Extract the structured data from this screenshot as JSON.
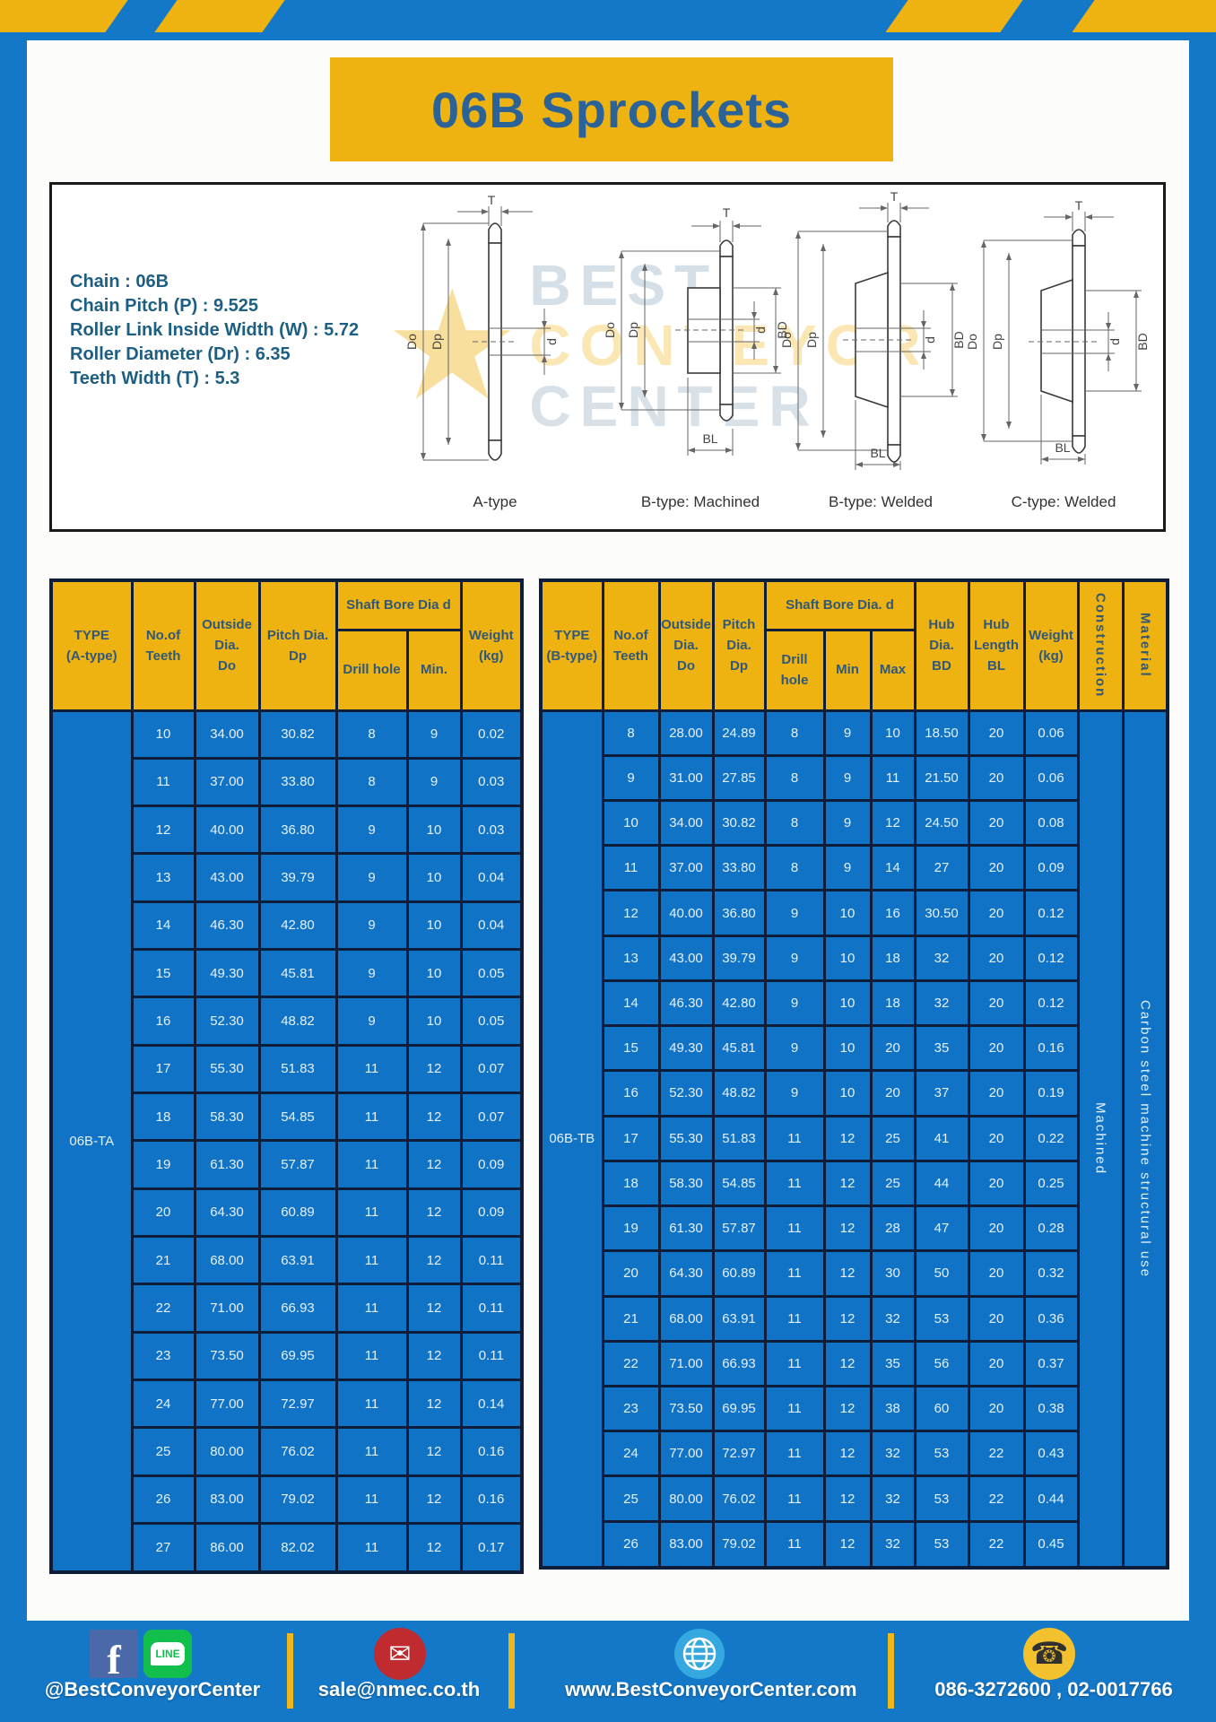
{
  "page": {
    "title": "06B Sprockets"
  },
  "specs": {
    "lines": [
      "Chain  : 06B",
      "Chain Pitch (P)  :  9.525",
      "Roller Link Inside Width (W)  :  5.72",
      "Roller Diameter (Dr)  : 6.35",
      "Teeth Width (T)  :  5.3"
    ]
  },
  "watermark": {
    "lines": [
      "BEST",
      "CONVEYOR",
      "CENTER"
    ],
    "star": "★"
  },
  "diagrams": {
    "dims": {
      "T": "T",
      "Do": "Do",
      "Dp": "Dp",
      "d": "d",
      "BD": "BD",
      "BL": "BL"
    },
    "items": [
      {
        "caption": "A-type"
      },
      {
        "caption": "B-type: Machined"
      },
      {
        "caption": "B-type: Welded"
      },
      {
        "caption": "C-type: Welded"
      }
    ]
  },
  "table_a": {
    "h_type": "TYPE\n(A-type)",
    "h_teeth": "No.of\nTeeth",
    "h_outside": "Outside\nDia.\nDo",
    "h_pitch": "Pitch Dia.\nDp",
    "h_shaft": "Shaft Bore Dia d",
    "h_drill": "Drill hole",
    "h_min": "Min.",
    "h_weight": "Weight\n(kg)",
    "type_value": "06B-TA",
    "rows": [
      [
        10,
        "34.00",
        "30.82",
        8,
        9,
        "0.02"
      ],
      [
        11,
        "37.00",
        "33.80",
        8,
        9,
        "0.03"
      ],
      [
        12,
        "40.00",
        "36.80",
        9,
        10,
        "0.03"
      ],
      [
        13,
        "43.00",
        "39.79",
        9,
        10,
        "0.04"
      ],
      [
        14,
        "46.30",
        "42.80",
        9,
        10,
        "0.04"
      ],
      [
        15,
        "49.30",
        "45.81",
        9,
        10,
        "0.05"
      ],
      [
        16,
        "52.30",
        "48.82",
        9,
        10,
        "0.05"
      ],
      [
        17,
        "55.30",
        "51.83",
        11,
        12,
        "0.07"
      ],
      [
        18,
        "58.30",
        "54.85",
        11,
        12,
        "0.07"
      ],
      [
        19,
        "61.30",
        "57.87",
        11,
        12,
        "0.09"
      ],
      [
        20,
        "64.30",
        "60.89",
        11,
        12,
        "0.09"
      ],
      [
        21,
        "68.00",
        "63.91",
        11,
        12,
        "0.11"
      ],
      [
        22,
        "71.00",
        "66.93",
        11,
        12,
        "0.11"
      ],
      [
        23,
        "73.50",
        "69.95",
        11,
        12,
        "0.11"
      ],
      [
        24,
        "77.00",
        "72.97",
        11,
        12,
        "0.14"
      ],
      [
        25,
        "80.00",
        "76.02",
        11,
        12,
        "0.16"
      ],
      [
        26,
        "83.00",
        "79.02",
        11,
        12,
        "0.16"
      ],
      [
        27,
        "86.00",
        "82.02",
        11,
        12,
        "0.17"
      ]
    ]
  },
  "table_b": {
    "h_type": "TYPE\n(B-type)",
    "h_teeth": "No.of\nTeeth",
    "h_outside": "Outside\nDia.\nDo",
    "h_pitch": "Pitch\nDia.\nDp",
    "h_shaft": "Shaft Bore Dia.  d",
    "h_drill": "Drill hole",
    "h_min": "Min",
    "h_max": "Max",
    "h_hub_dia": "Hub\nDia.\nBD",
    "h_hub_len": "Hub\nLength\nBL",
    "h_weight": "Weight\n(kg)",
    "h_construction": "Construction",
    "h_material": "Material",
    "type_value": "06B-TB",
    "construction_value": "Machined",
    "material_value": "Carbon steel machine structural use",
    "rows": [
      [
        8,
        "28.00",
        "24.89",
        8,
        9,
        10,
        "18.50",
        20,
        "0.06"
      ],
      [
        9,
        "31.00",
        "27.85",
        8,
        9,
        11,
        "21.50",
        20,
        "0.06"
      ],
      [
        10,
        "34.00",
        "30.82",
        8,
        9,
        12,
        "24.50",
        20,
        "0.08"
      ],
      [
        11,
        "37.00",
        "33.80",
        8,
        9,
        14,
        "27",
        20,
        "0.09"
      ],
      [
        12,
        "40.00",
        "36.80",
        9,
        10,
        16,
        "30.50",
        20,
        "0.12"
      ],
      [
        13,
        "43.00",
        "39.79",
        9,
        10,
        18,
        "32",
        20,
        "0.12"
      ],
      [
        14,
        "46.30",
        "42.80",
        9,
        10,
        18,
        "32",
        20,
        "0.12"
      ],
      [
        15,
        "49.30",
        "45.81",
        9,
        10,
        20,
        "35",
        20,
        "0.16"
      ],
      [
        16,
        "52.30",
        "48.82",
        9,
        10,
        20,
        "37",
        20,
        "0.19"
      ],
      [
        17,
        "55.30",
        "51.83",
        11,
        12,
        25,
        "41",
        20,
        "0.22"
      ],
      [
        18,
        "58.30",
        "54.85",
        11,
        12,
        25,
        "44",
        20,
        "0.25"
      ],
      [
        19,
        "61.30",
        "57.87",
        11,
        12,
        28,
        "47",
        20,
        "0.28"
      ],
      [
        20,
        "64.30",
        "60.89",
        11,
        12,
        30,
        "50",
        20,
        "0.32"
      ],
      [
        21,
        "68.00",
        "63.91",
        11,
        12,
        32,
        "53",
        20,
        "0.36"
      ],
      [
        22,
        "71.00",
        "66.93",
        11,
        12,
        35,
        "56",
        20,
        "0.37"
      ],
      [
        23,
        "73.50",
        "69.95",
        11,
        12,
        38,
        "60",
        20,
        "0.38"
      ],
      [
        24,
        "77.00",
        "72.97",
        11,
        12,
        32,
        "53",
        22,
        "0.43"
      ],
      [
        25,
        "80.00",
        "76.02",
        11,
        12,
        32,
        "53",
        22,
        "0.44"
      ],
      [
        26,
        "83.00",
        "79.02",
        11,
        12,
        32,
        "53",
        22,
        "0.45"
      ]
    ]
  },
  "footer": {
    "social_handle": "@BestConveyorCenter",
    "line_label": "LINE",
    "facebook_letter": "f",
    "email": "sale@nmec.co.th",
    "website": "www.BestConveyorCenter.com",
    "phones": "086-3272600 , 02-0017766",
    "envelope_glyph": "✉",
    "phone_glyph": "☎"
  },
  "colors": {
    "frame_blue": "#1478c8",
    "accent_yellow": "#eeb211",
    "cell_blue": "#1173c5",
    "border_navy": "#0d1d3a",
    "header_text": "#30587a",
    "title_text": "#2b6298",
    "spec_text": "#1d5f83",
    "facebook_blue": "#4b69a8",
    "line_green": "#12bf4d",
    "mail_red": "#bf2b2e",
    "globe_blue": "#35a8e0",
    "phone_yellow": "#f2c12d"
  }
}
